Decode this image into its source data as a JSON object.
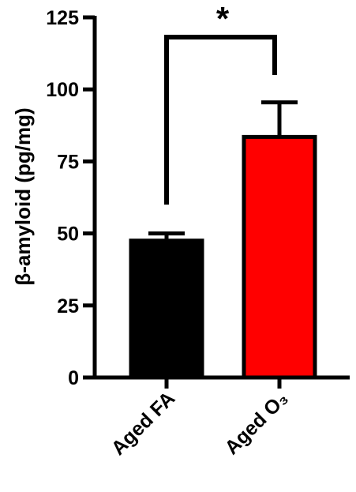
{
  "chart_data": {
    "type": "bar",
    "categories": [
      "Aged FA",
      "Aged O₃"
    ],
    "values": [
      47.5,
      83.5
    ],
    "error": [
      2.5,
      12
    ],
    "colors": [
      "#000000",
      "#ff0000"
    ],
    "ylabel": "β-amyloid (pg/mg)",
    "xlabel": "",
    "ylim": [
      0,
      125
    ],
    "yticks": [
      0,
      25,
      50,
      75,
      100,
      125
    ],
    "ytick_labels": [
      "0",
      "25",
      "50",
      "75",
      "100",
      "125"
    ],
    "grid": false,
    "significance": {
      "label": "*",
      "between": [
        "Aged FA",
        "Aged O₃"
      ]
    }
  }
}
